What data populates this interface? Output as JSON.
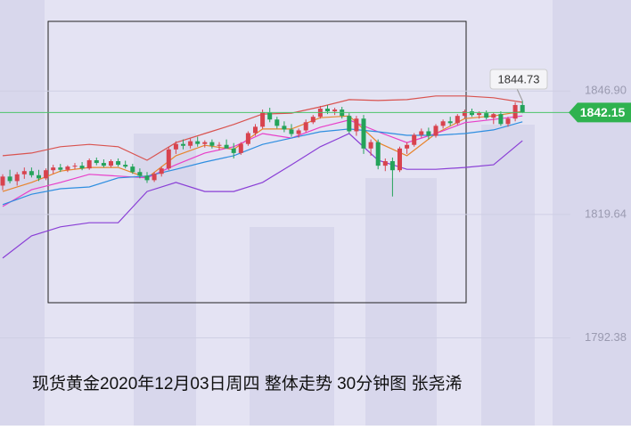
{
  "chart_data": {
    "type": "candlestick",
    "title": "现货黄金2020年12月03日周四 整体走势  30分钟图 张尧浠",
    "ylim": [
      1773,
      1867
    ],
    "yticks": [
      {
        "value": 1846.9,
        "label": "1846.90"
      },
      1819.64,
      1792.38
    ],
    "up_color": "#d8434e",
    "down_color": "#24a35a",
    "candles": [
      [
        1826.0,
        1828.5,
        1825.0,
        1828.0
      ],
      [
        1828.0,
        1829.5,
        1826.5,
        1827.0
      ],
      [
        1827.0,
        1829.0,
        1826.0,
        1828.5
      ],
      [
        1828.5,
        1830.0,
        1827.5,
        1829.2
      ],
      [
        1829.2,
        1830.0,
        1827.8,
        1828.3
      ],
      [
        1828.3,
        1829.5,
        1827.0,
        1827.6
      ],
      [
        1827.6,
        1829.8,
        1827.2,
        1829.4
      ],
      [
        1829.4,
        1830.6,
        1828.6,
        1830.0
      ],
      [
        1830.0,
        1830.8,
        1829.0,
        1829.5
      ],
      [
        1829.5,
        1830.5,
        1829.0,
        1830.2
      ],
      [
        1830.2,
        1831.0,
        1829.6,
        1830.4
      ],
      [
        1830.4,
        1831.2,
        1829.4,
        1829.8
      ],
      [
        1829.8,
        1832.0,
        1829.5,
        1831.6
      ],
      [
        1831.6,
        1832.2,
        1830.5,
        1831.0
      ],
      [
        1831.0,
        1831.8,
        1830.0,
        1830.4
      ],
      [
        1830.4,
        1831.8,
        1830.0,
        1831.4
      ],
      [
        1831.4,
        1832.0,
        1830.2,
        1830.6
      ],
      [
        1830.6,
        1831.5,
        1829.8,
        1830.2
      ],
      [
        1830.2,
        1830.8,
        1828.6,
        1829.0
      ],
      [
        1829.0,
        1829.8,
        1827.6,
        1828.2
      ],
      [
        1828.2,
        1829.0,
        1826.6,
        1827.2
      ],
      [
        1827.2,
        1829.0,
        1826.8,
        1828.6
      ],
      [
        1828.6,
        1830.2,
        1828.0,
        1829.8
      ],
      [
        1829.8,
        1834.6,
        1829.4,
        1834.0
      ],
      [
        1834.0,
        1835.8,
        1833.0,
        1835.2
      ],
      [
        1835.2,
        1836.2,
        1834.0,
        1834.8
      ],
      [
        1834.8,
        1836.4,
        1834.2,
        1835.8
      ],
      [
        1835.8,
        1836.8,
        1834.6,
        1835.2
      ],
      [
        1835.2,
        1836.0,
        1834.4,
        1835.6
      ],
      [
        1835.6,
        1836.2,
        1834.2,
        1834.8
      ],
      [
        1834.8,
        1835.6,
        1833.8,
        1835.0
      ],
      [
        1835.0,
        1836.2,
        1834.4,
        1834.2
      ],
      [
        1834.2,
        1835.4,
        1832.0,
        1833.2
      ],
      [
        1833.2,
        1835.6,
        1832.8,
        1835.2
      ],
      [
        1835.2,
        1838.0,
        1834.8,
        1837.6
      ],
      [
        1837.6,
        1839.6,
        1837.0,
        1839.0
      ],
      [
        1839.0,
        1842.8,
        1838.6,
        1842.2
      ],
      [
        1842.2,
        1843.2,
        1840.0,
        1840.6
      ],
      [
        1840.6,
        1841.2,
        1838.6,
        1839.2
      ],
      [
        1839.2,
        1840.2,
        1837.8,
        1838.4
      ],
      [
        1838.4,
        1839.6,
        1836.8,
        1837.4
      ],
      [
        1837.4,
        1838.6,
        1836.6,
        1838.2
      ],
      [
        1838.2,
        1840.6,
        1837.8,
        1840.0
      ],
      [
        1840.0,
        1841.6,
        1839.6,
        1841.2
      ],
      [
        1841.2,
        1843.6,
        1840.8,
        1843.0
      ],
      [
        1843.0,
        1843.8,
        1841.8,
        1842.4
      ],
      [
        1842.4,
        1843.2,
        1841.6,
        1842.8
      ],
      [
        1842.8,
        1843.4,
        1840.8,
        1841.4
      ],
      [
        1841.4,
        1842.0,
        1837.6,
        1838.0
      ],
      [
        1838.0,
        1841.4,
        1837.0,
        1840.8
      ],
      [
        1840.8,
        1841.6,
        1833.0,
        1834.2
      ],
      [
        1834.2,
        1836.2,
        1832.6,
        1835.6
      ],
      [
        1835.6,
        1836.2,
        1829.6,
        1830.4
      ],
      [
        1830.4,
        1832.0,
        1829.2,
        1831.4
      ],
      [
        1831.4,
        1832.2,
        1823.6,
        1829.4
      ],
      [
        1829.4,
        1834.6,
        1829.0,
        1834.2
      ],
      [
        1834.2,
        1835.6,
        1833.0,
        1835.0
      ],
      [
        1835.0,
        1837.6,
        1834.6,
        1837.2
      ],
      [
        1837.2,
        1838.6,
        1836.6,
        1838.0
      ],
      [
        1838.0,
        1838.8,
        1836.2,
        1837.0
      ],
      [
        1837.0,
        1839.6,
        1836.6,
        1839.2
      ],
      [
        1839.2,
        1840.6,
        1838.6,
        1840.2
      ],
      [
        1840.2,
        1841.2,
        1839.2,
        1839.8
      ],
      [
        1839.8,
        1841.8,
        1839.4,
        1841.4
      ],
      [
        1841.4,
        1842.8,
        1840.8,
        1842.4
      ],
      [
        1842.4,
        1843.0,
        1841.2,
        1841.6
      ],
      [
        1841.6,
        1842.4,
        1840.8,
        1842.0
      ],
      [
        1842.0,
        1842.6,
        1840.6,
        1841.0
      ],
      [
        1841.0,
        1842.2,
        1839.6,
        1841.8
      ],
      [
        1841.8,
        1842.4,
        1839.2,
        1839.6
      ],
      [
        1839.6,
        1841.2,
        1839.0,
        1840.8
      ],
      [
        1840.8,
        1844.4,
        1840.2,
        1843.8
      ],
      [
        1843.8,
        1844.73,
        1842.0,
        1842.15
      ]
    ],
    "line_x": [
      0,
      4,
      8,
      12,
      16,
      20,
      24,
      28,
      32,
      36,
      40,
      44,
      48,
      52,
      56,
      60,
      64,
      68,
      72
    ],
    "series": [
      {
        "color": "#d9534f",
        "values": [
          1832.6,
          1833.2,
          1834.6,
          1835.1,
          1834.6,
          1831.6,
          1835.5,
          1837.5,
          1839.5,
          1841.8,
          1842.0,
          1843.4,
          1845.0,
          1844.8,
          1845.0,
          1845.8,
          1845.8,
          1845.4,
          1844.4
        ]
      },
      {
        "color": "#e8842c",
        "values": [
          1824.7,
          1826.7,
          1829.2,
          1830.0,
          1830.0,
          1827.7,
          1832.6,
          1834.9,
          1834.0,
          1838.5,
          1838.5,
          1841.0,
          1841.4,
          1835.5,
          1832.6,
          1837.5,
          1840.8,
          1841.4,
          1842.4
        ]
      },
      {
        "color": "#e83fc9",
        "values": [
          1821.4,
          1825.1,
          1826.7,
          1828.5,
          1828.1,
          1827.7,
          1830.6,
          1833.2,
          1834.6,
          1837.5,
          1836.5,
          1838.9,
          1840.5,
          1837.9,
          1835.5,
          1837.5,
          1839.9,
          1840.6,
          1841.4
        ]
      },
      {
        "color": "#2e8ee0",
        "values": [
          1821.8,
          1824.1,
          1825.3,
          1825.7,
          1827.7,
          1828.1,
          1829.6,
          1831.2,
          1832.6,
          1835.1,
          1836.5,
          1837.9,
          1838.5,
          1837.9,
          1837.1,
          1837.1,
          1837.5,
          1838.3,
          1840.1
        ]
      },
      {
        "color": "#8a3fd6",
        "values": [
          1810.0,
          1814.9,
          1816.9,
          1817.8,
          1817.8,
          1824.7,
          1826.7,
          1824.7,
          1824.7,
          1826.7,
          1830.6,
          1834.6,
          1837.5,
          1831.6,
          1829.6,
          1829.6,
          1830.0,
          1830.6,
          1835.9
        ]
      }
    ],
    "last_price": {
      "value": 1842.15,
      "label": "1842.15"
    },
    "high_label": {
      "value": 1844.73,
      "label": "1844.73"
    }
  }
}
